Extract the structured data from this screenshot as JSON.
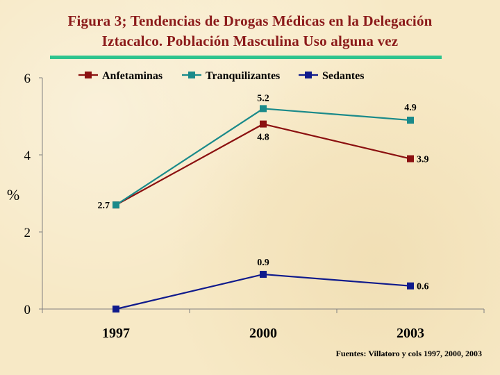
{
  "title_line1": "Figura 3; Tendencias de Drogas Médicas en  la Delegación",
  "title_line2": "Iztacalco. Población Masculina Uso alguna vez",
  "source": "Fuentes: Villatoro y cols 1997, 2000, 2003",
  "colors": {
    "title": "#8b1a1a",
    "rule": "#2ec48e",
    "axis": "#808080"
  },
  "chart_data": {
    "type": "line",
    "categories": [
      "1997",
      "2000",
      "2003"
    ],
    "ylabel": "%",
    "ylim": [
      0,
      6
    ],
    "yticks": [
      0,
      2,
      4,
      6
    ],
    "grid": false,
    "legend_position": "top",
    "series": [
      {
        "name": "Anfetaminas",
        "color": "#8b1010",
        "values": [
          2.7,
          4.8,
          3.9
        ],
        "labels": [
          "",
          "4.8",
          "3.9"
        ]
      },
      {
        "name": "Tranquilizantes",
        "color": "#1a8a8a",
        "values": [
          2.7,
          5.2,
          4.9
        ],
        "labels": [
          "2.7",
          "5.2",
          "4.9"
        ]
      },
      {
        "name": "Sedantes",
        "color": "#0f1a8c",
        "values": [
          0,
          0.9,
          0.6
        ],
        "labels": [
          "",
          "0.9",
          "0.6"
        ]
      }
    ]
  }
}
